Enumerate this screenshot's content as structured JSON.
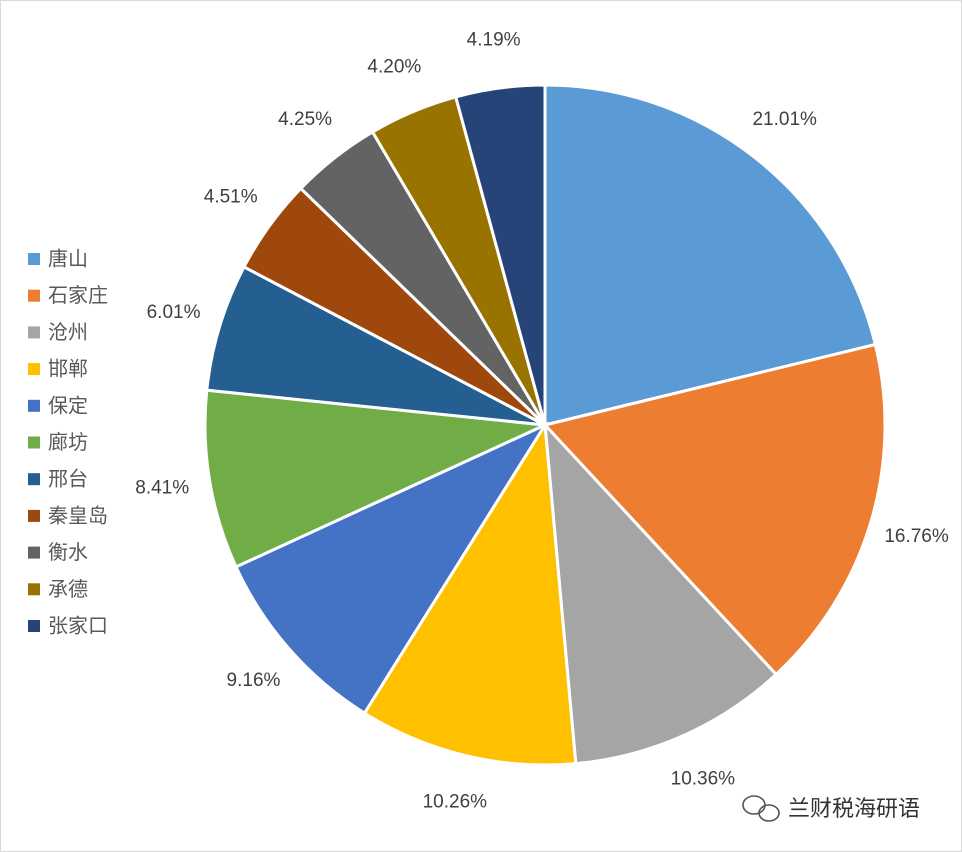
{
  "chart_data": {
    "type": "pie",
    "categories": [
      "唐山",
      "石家庄",
      "沧州",
      "邯郸",
      "保定",
      "廊坊",
      "邢台",
      "秦皇岛",
      "衡水",
      "承德",
      "张家口"
    ],
    "values": [
      21.01,
      16.76,
      10.36,
      10.26,
      9.16,
      8.41,
      6.01,
      4.51,
      4.25,
      4.2,
      4.19
    ],
    "value_labels": [
      "21.01%",
      "16.76%",
      "10.36%",
      "10.26%",
      "9.16%",
      "8.41%",
      "6.01%",
      "4.51%",
      "4.25%",
      "4.20%",
      "4.19%"
    ],
    "colors": [
      "#5b9bd5",
      "#ed7d31",
      "#a5a5a5",
      "#ffc000",
      "#4472c4",
      "#70ad47",
      "#255e91",
      "#9e480e",
      "#636363",
      "#997300",
      "#264478"
    ],
    "legend": "left",
    "watermark": "兰财税海研语"
  }
}
